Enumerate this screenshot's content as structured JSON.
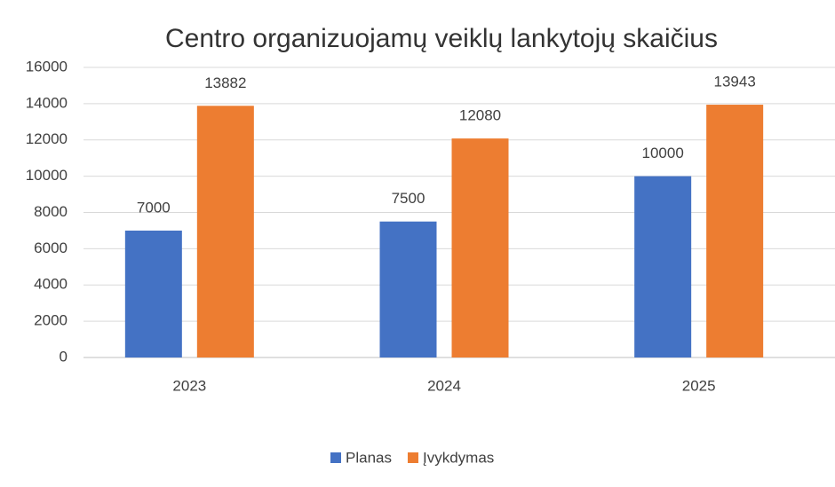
{
  "chart_data": {
    "type": "bar",
    "title": "Centro organizuojamų veiklų lankytojų skaičius",
    "categories": [
      "2023",
      "2024",
      "2025"
    ],
    "series": [
      {
        "name": "Planas",
        "color": "#4472c4",
        "values": [
          7000,
          7500,
          10000
        ]
      },
      {
        "name": "Įvykdymas",
        "color": "#ed7d31",
        "values": [
          13882,
          12080,
          13943
        ]
      }
    ],
    "ylim": [
      0,
      16000
    ],
    "yticks": [
      0,
      2000,
      4000,
      6000,
      8000,
      10000,
      12000,
      14000,
      16000
    ],
    "grid": true,
    "legend": "bottom"
  }
}
